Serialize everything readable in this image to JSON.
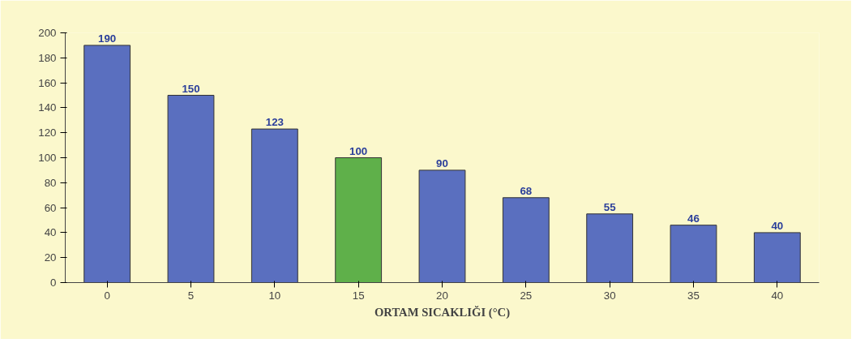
{
  "chart_data": {
    "type": "bar",
    "xlabel": "ORTAM SICAKLIĞI (°C)",
    "categories": [
      "0",
      "5",
      "10",
      "15",
      "20",
      "25",
      "30",
      "35",
      "40"
    ],
    "values": [
      190,
      150,
      123,
      100,
      90,
      68,
      55,
      46,
      40
    ],
    "colors": [
      "#5a6fbf",
      "#5a6fbf",
      "#5a6fbf",
      "#5fb04a",
      "#5a6fbf",
      "#5a6fbf",
      "#5a6fbf",
      "#5a6fbf",
      "#5a6fbf"
    ],
    "ylim": [
      0,
      200
    ],
    "yticks": [
      0,
      20,
      40,
      60,
      80,
      100,
      120,
      140,
      160,
      180,
      200
    ],
    "data_labels": true,
    "grid": false
  }
}
